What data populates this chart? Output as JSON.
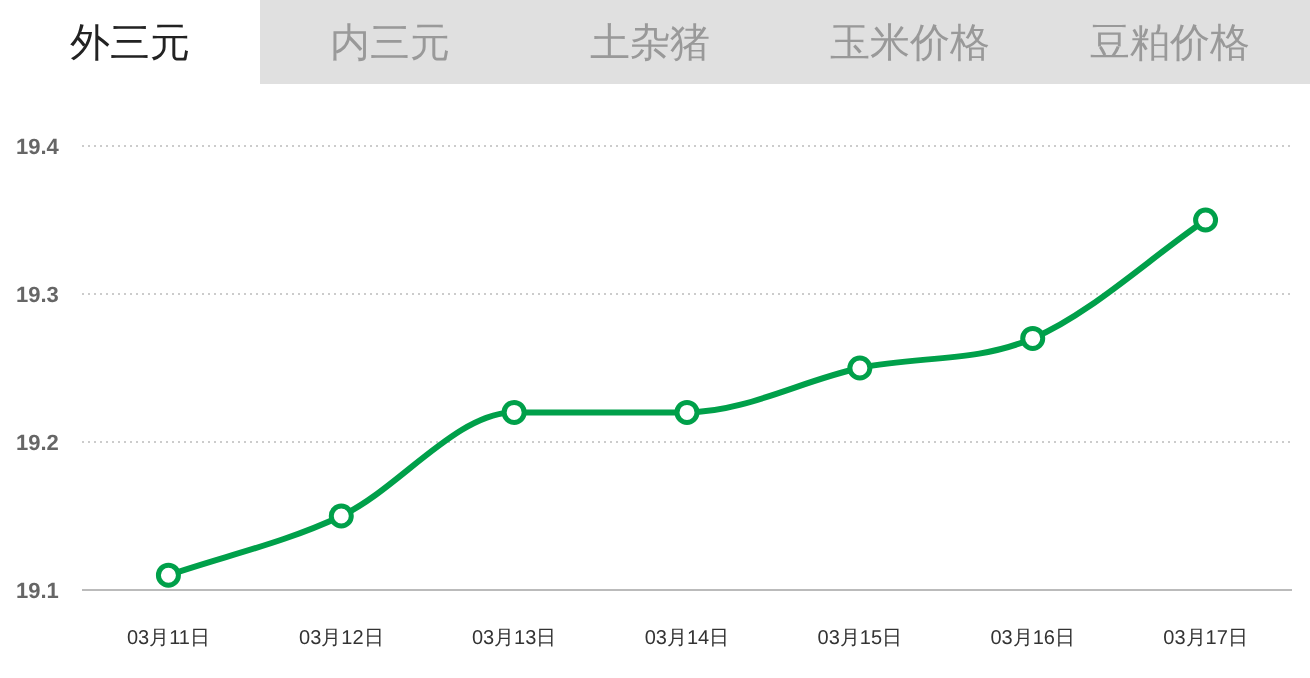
{
  "chart_data": {
    "type": "line",
    "title": "外三元",
    "annotations": [
      "内三元",
      "土杂猪",
      "玉米价格",
      "豆粕价格"
    ],
    "categories": [
      "03月11日",
      "03月12日",
      "03月13日",
      "03月14日",
      "03月15日",
      "03月16日",
      "03月17日"
    ],
    "series": [
      {
        "color": "#00a04a",
        "values": [
          19.11,
          19.15,
          19.22,
          19.22,
          19.25,
          19.27,
          19.35
        ]
      }
    ],
    "ylim": [
      19.1,
      19.4
    ],
    "yticks": [
      {
        "value": 19.1,
        "label": "19.1"
      },
      {
        "value": 19.2,
        "label": "19.2"
      },
      {
        "value": 19.3,
        "label": "19.3"
      },
      {
        "value": 19.4,
        "label": "19.4"
      }
    ],
    "grid": "y",
    "marker": "circle",
    "line_style": "solid"
  }
}
